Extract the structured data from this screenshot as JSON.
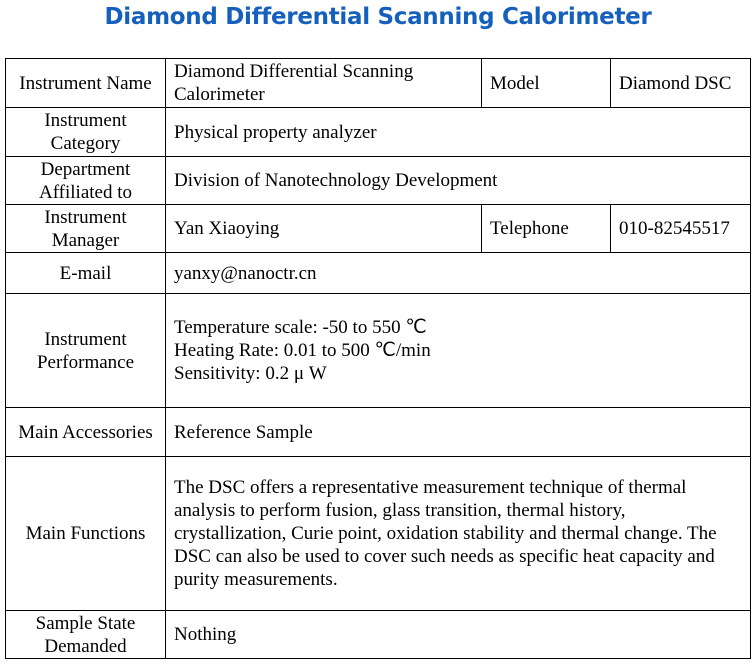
{
  "title": "Diamond Differential Scanning Calorimeter",
  "rows": {
    "name": {
      "label": "Instrument Name",
      "value": "Diamond Differential Scanning Calorimeter",
      "label2": "Model",
      "value2": "Diamond DSC"
    },
    "category": {
      "label": "Instrument Category",
      "value": "Physical property analyzer"
    },
    "department": {
      "label": "Department Affiliated to",
      "value": "Division of Nanotechnology Development"
    },
    "manager": {
      "label": "Instrument Manager",
      "value": "Yan Xiaoying",
      "label2": "Telephone",
      "value2": "010-82545517"
    },
    "email": {
      "label": "E-mail",
      "value": "yanxy@nanoctr.cn"
    },
    "performance": {
      "label": "Instrument Performance",
      "lines": [
        "Temperature scale: -50 to 550 ℃",
        "Heating Rate: 0.01 to 500 ℃/min",
        "Sensitivity: 0.2 μ W"
      ]
    },
    "accessories": {
      "label": "Main Accessories",
      "value": "Reference Sample"
    },
    "functions": {
      "label": "Main Functions",
      "value": "The DSC offers a representative measurement technique of thermal analysis to perform fusion, glass transition, thermal history, crystallization, Curie point, oxidation stability and thermal change. The DSC can also be used to cover such needs as specific heat capacity and purity measurements."
    },
    "sample": {
      "label": "Sample State Demanded",
      "value": "Nothing"
    }
  }
}
